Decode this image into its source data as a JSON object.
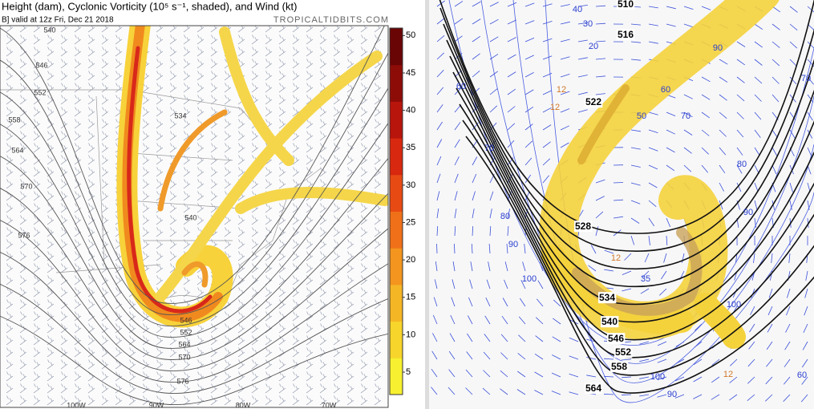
{
  "left_panel": {
    "title": "Height (dam), Cyclonic Vorticity (10⁵ s⁻¹, shaded), and Wind (kt)",
    "valid": "B]  valid at 12z Fri, Dec 21 2018",
    "credit": "TROPICALTIDBITS.COM",
    "colorbar": {
      "range": [
        2,
        51
      ],
      "ticks": [
        5,
        10,
        15,
        20,
        25,
        30,
        35,
        40,
        45,
        50
      ]
    },
    "height_labels": [
      540,
      546,
      552,
      558,
      564,
      570,
      576,
      534,
      540,
      546,
      552,
      564,
      570,
      576
    ],
    "longitude_labels": [
      "100W",
      "90W",
      "80W",
      "70W"
    ]
  },
  "right_panel": {
    "height_labels": [
      510,
      516,
      522,
      528,
      534,
      540,
      546,
      552,
      558,
      564
    ],
    "wind_labels": [
      40,
      30,
      20,
      60,
      70,
      80,
      90,
      100,
      90,
      70,
      50,
      60,
      70,
      80,
      90,
      100,
      100,
      90,
      60,
      35
    ],
    "orange_labels": [
      12,
      12,
      12,
      12
    ]
  }
}
